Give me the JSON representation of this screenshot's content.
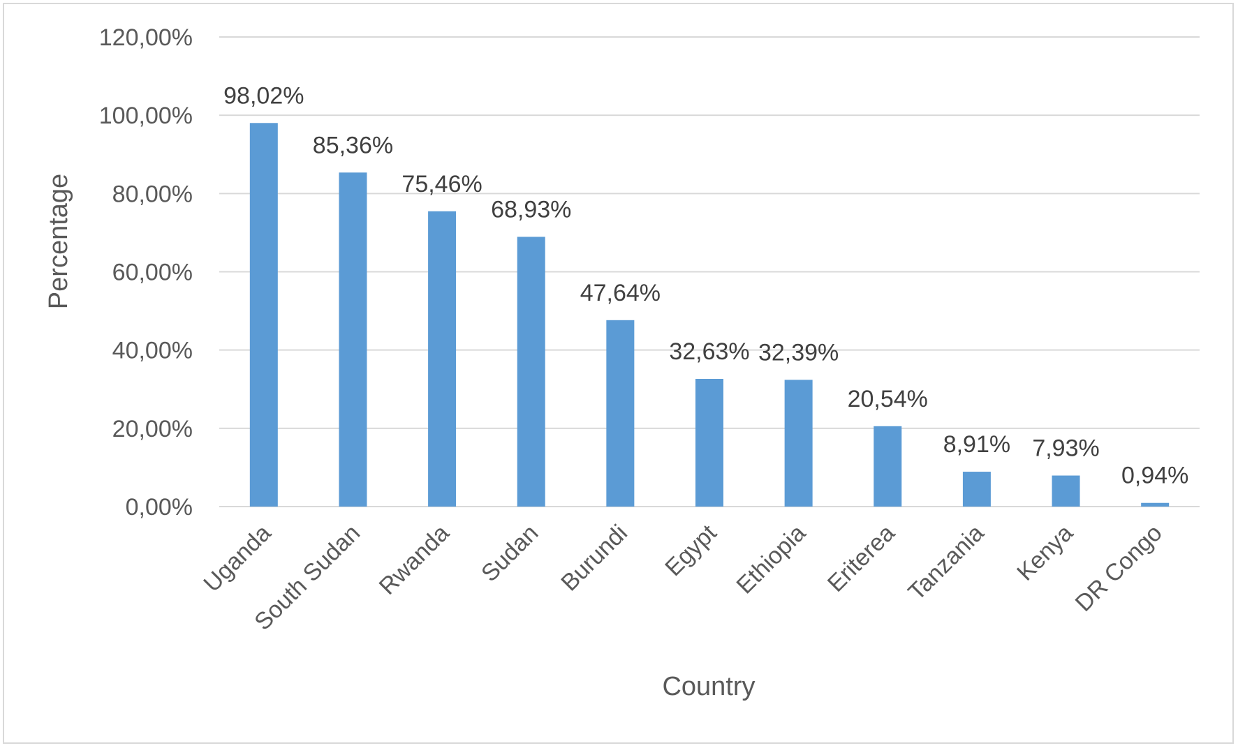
{
  "chart_data": {
    "type": "bar",
    "title": "",
    "xlabel": "Country",
    "ylabel": "Percentage",
    "categories": [
      "Uganda",
      "South Sudan",
      "Rwanda",
      "Sudan",
      "Burundi",
      "Egypt",
      "Ethiopia",
      "Eriterea",
      "Tanzania",
      "Kenya",
      "DR Congo"
    ],
    "values": [
      98.02,
      85.36,
      75.46,
      68.93,
      47.64,
      32.63,
      32.39,
      20.54,
      8.91,
      7.93,
      0.94
    ],
    "data_labels": [
      "98,02%",
      "85,36%",
      "75,46%",
      "68,93%",
      "47,64%",
      "32,63%",
      "32,39%",
      "20,54%",
      "8,91%",
      "7,93%",
      "0,94%"
    ],
    "yticks": [
      0,
      20,
      40,
      60,
      80,
      100,
      120
    ],
    "ytick_labels": [
      "0,00%",
      "20,00%",
      "40,00%",
      "60,00%",
      "80,00%",
      "100,00%",
      "120,00%"
    ],
    "ylim": [
      0,
      120
    ],
    "grid": true,
    "legend": "none",
    "colors": {
      "bar": "#5b9bd5",
      "grid": "#d9d9d9",
      "text": "#595959",
      "data_label": "#404040",
      "border": "#d9d9d9"
    }
  }
}
